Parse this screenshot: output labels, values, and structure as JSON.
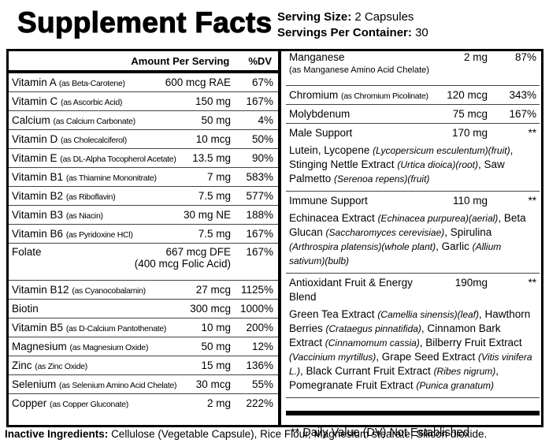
{
  "header": {
    "title": "Supplement Facts",
    "serving_size_label": "Serving Size:",
    "serving_size": "2 Capsules",
    "servings_label": "Servings Per Container:",
    "servings": "30"
  },
  "table": {
    "amount_header": "Amount Per Serving",
    "dv_header": "%DV",
    "rows": [
      {
        "name": "Vitamin A",
        "source": "(as Beta-Carotene)",
        "amount": "600 mcg RAE",
        "dv": "67%"
      },
      {
        "name": "Vitamin C",
        "source": "(as Ascorbic Acid)",
        "amount": "150 mg",
        "dv": "167%"
      },
      {
        "name": "Calcium",
        "source": "(as Calcium Carbonate)",
        "amount": "50 mg",
        "dv": "4%"
      },
      {
        "name": "Vitamin D",
        "source": "(as Cholecalciferol)",
        "amount": "10 mcg",
        "dv": "50%"
      },
      {
        "name": "Vitamin E",
        "source": "(as DL-Alpha Tocopherol Acetate)",
        "amount": "13.5 mg",
        "dv": "90%"
      },
      {
        "name": "Vitamin B1",
        "source": "(as Thiamine Mononitrate)",
        "amount": "7 mg",
        "dv": "583%"
      },
      {
        "name": "Vitamin B2",
        "source": "(as Riboflavin)",
        "amount": "7.5 mg",
        "dv": "577%"
      },
      {
        "name": "Vitamin B3",
        "source": "(as Niacin)",
        "amount": "30 mg NE",
        "dv": "188%"
      },
      {
        "name": "Vitamin B6",
        "source": "(as Pyridoxine HCl)",
        "amount": "7.5 mg",
        "dv": "167%"
      },
      {
        "name": "Folate",
        "amount": "667 mcg DFE",
        "note": "(400 mcg Folic Acid)",
        "dv": "167%"
      },
      {
        "name": "Vitamin B12",
        "source": "(as Cyanocobalamin)",
        "amount": "27 mcg",
        "dv": "1125%"
      },
      {
        "name": "Biotin",
        "amount": "300 mcg",
        "dv": "1000%"
      },
      {
        "name": "Vitamin B5",
        "source": "(as D-Calcium Pantothenate)",
        "amount": "10 mg",
        "dv": "200%"
      },
      {
        "name": "Magnesium",
        "source": "(as Magnesium Oxide)",
        "amount": "50 mg",
        "dv": "12%"
      },
      {
        "name": "Zinc",
        "source": "(as Zinc Oxide)",
        "amount": "15 mg",
        "dv": "136%"
      },
      {
        "name": "Selenium",
        "source": "(as Selenium Amino Acid Chelate)",
        "amount": "30 mcg",
        "dv": "55%"
      },
      {
        "name": "Copper",
        "source": "(as Copper Gluconate)",
        "amount": "2 mg",
        "dv": "222%"
      }
    ]
  },
  "right_table": {
    "rows": [
      {
        "name": "Manganese",
        "note": "(as Manganese Amino Acid Chelate)",
        "amount": "2 mg",
        "dv": "87%"
      },
      {
        "name": "Chromium",
        "source": "(as Chromium Picolinate)",
        "amount": "120 mcg",
        "dv": "343%"
      },
      {
        "name": "Molybdenum",
        "amount": "75 mcg",
        "dv": "167%"
      }
    ],
    "blends": [
      {
        "name": "Male Support",
        "amount": "170 mg",
        "dv": "**",
        "segments": [
          {
            "text": "Lutein, Lycopene ",
            "italic": false
          },
          {
            "text": "(Lycopersicum esculentum)(fruit)",
            "italic": true
          },
          {
            "text": ", Stinging Nettle Extract ",
            "italic": false
          },
          {
            "text": "(Urtica dioica)(root)",
            "italic": true
          },
          {
            "text": ", Saw Palmetto ",
            "italic": false
          },
          {
            "text": "(Serenoa repens)(fruit)",
            "italic": true
          }
        ]
      },
      {
        "name": "Immune Support",
        "amount": "110 mg",
        "dv": "**",
        "segments": [
          {
            "text": "Echinacea Extract ",
            "italic": false
          },
          {
            "text": "(Echinacea purpurea)(aerial)",
            "italic": true
          },
          {
            "text": ", Beta Glucan ",
            "italic": false
          },
          {
            "text": "(Saccharomyces cerevisiae)",
            "italic": true
          },
          {
            "text": ", Spirulina ",
            "italic": false
          },
          {
            "text": "(Arthrospira platensis)(whole plant)",
            "italic": true
          },
          {
            "text": ", Garlic ",
            "italic": false
          },
          {
            "text": "(Allium sativum)(bulb)",
            "italic": true
          }
        ]
      },
      {
        "name": "Antioxidant Fruit & Energy Blend",
        "amount": "190mg",
        "dv": "**",
        "segments": [
          {
            "text": "Green Tea Extract ",
            "italic": false
          },
          {
            "text": "(Camellia sinensis)(leaf)",
            "italic": true
          },
          {
            "text": ", Hawthorn Berries ",
            "italic": false
          },
          {
            "text": "(Crataegus pinnatifida)",
            "italic": true
          },
          {
            "text": ", Cinnamon Bark Extract ",
            "italic": false
          },
          {
            "text": "(Cinnamomum cassia)",
            "italic": true
          },
          {
            "text": ", Bilberry Fruit Extract ",
            "italic": false
          },
          {
            "text": "(Vaccinium myrtillus)",
            "italic": true
          },
          {
            "text": ", Grape Seed Extract ",
            "italic": false
          },
          {
            "text": "(Vitis vinifera L.)",
            "italic": true
          },
          {
            "text": ", Black Currant Fruit Extract ",
            "italic": false
          },
          {
            "text": "(Ribes nigrum)",
            "italic": true
          },
          {
            "text": ", Pomegranate Fruit Extract ",
            "italic": false
          },
          {
            "text": "(Punica granatum)",
            "italic": true
          }
        ]
      }
    ],
    "footnote": "** Daily Value (DV) Not Established"
  },
  "inactive": {
    "label": "Inactive Ingredients:",
    "text": "Cellulose (Vegetable Capsule), Rice Flour, Magnesium stearate, Silicon dioxide."
  }
}
